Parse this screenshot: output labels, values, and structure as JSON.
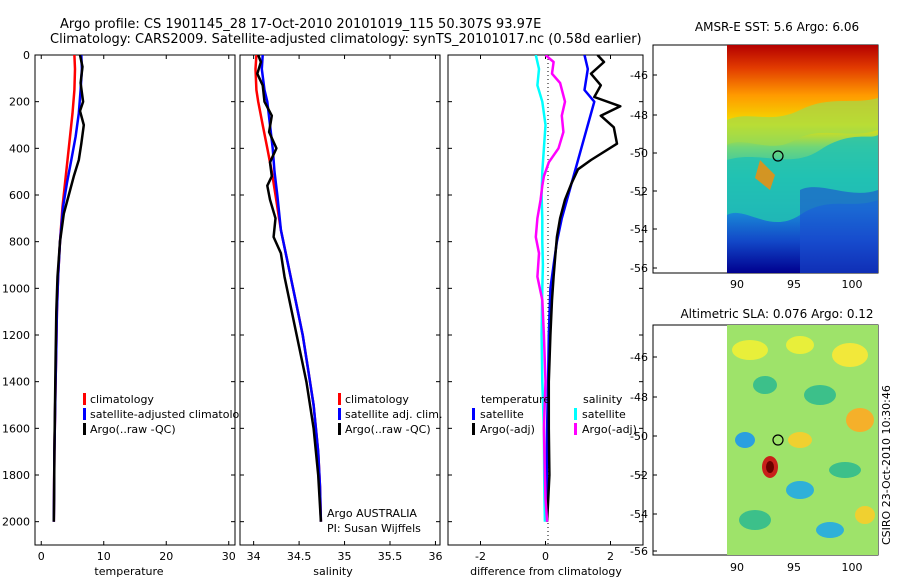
{
  "figure": {
    "title_line1": "Argo profile: CS 1901145_28 17-Oct-2010 20101019_115 50.307S 93.97E",
    "title_line2": "Climatology: CARS2009. Satellite-adjusted climatology: synTS_20101017.nc (0.58d earlier)",
    "side_stamp": "CSIRO 23-Oct-2010 10:30:46"
  },
  "chart_data": [
    {
      "id": "temperature",
      "type": "line",
      "xlabel": "temperature",
      "xlim": [
        -1,
        31
      ],
      "xticks": [
        0,
        10,
        20,
        30
      ],
      "ylim": [
        0,
        2100
      ],
      "yticks": [
        0,
        200,
        400,
        600,
        800,
        1000,
        1200,
        1400,
        1600,
        1800,
        2000
      ],
      "y_reversed": true,
      "legend": [
        "climatology",
        "satellite-adjusted climatolo",
        "Argo(..raw -QC)"
      ],
      "series": [
        {
          "name": "climatology",
          "color": "#ff0000",
          "x": [
            5.3,
            5.4,
            5.3,
            5.0,
            4.6,
            4.2,
            3.8,
            3.4,
            3.0,
            2.7,
            2.5,
            2.4,
            2.3,
            2.2,
            2.1,
            2.05,
            2.0
          ],
          "y": [
            0,
            60,
            150,
            250,
            350,
            450,
            550,
            650,
            800,
            950,
            1100,
            1250,
            1400,
            1550,
            1700,
            1850,
            2000
          ]
        },
        {
          "name": "satellite-adjusted climatology",
          "color": "#0000ff",
          "x": [
            6.4,
            6.5,
            6.3,
            6.0,
            5.5,
            4.8,
            4.1,
            3.5,
            3.0,
            2.7,
            2.5,
            2.4,
            2.3,
            2.2,
            2.1,
            2.05,
            2.0
          ],
          "y": [
            0,
            60,
            150,
            250,
            350,
            450,
            550,
            650,
            800,
            950,
            1100,
            1250,
            1400,
            1550,
            1700,
            1850,
            2000
          ]
        },
        {
          "name": "Argo(..raw -QC)",
          "color": "#000000",
          "x": [
            6.2,
            6.6,
            6.3,
            6.7,
            6.2,
            6.8,
            6.4,
            6.0,
            5.2,
            4.4,
            3.6,
            3.0,
            2.6,
            2.4,
            2.3,
            2.2,
            2.1,
            2.05,
            2.0
          ],
          "y": [
            0,
            50,
            120,
            200,
            240,
            300,
            380,
            450,
            520,
            600,
            680,
            800,
            950,
            1100,
            1300,
            1500,
            1700,
            1900,
            2000
          ]
        }
      ]
    },
    {
      "id": "salinity",
      "type": "line",
      "xlabel": "salinity",
      "xlim": [
        33.85,
        36.05
      ],
      "xticks": [
        34,
        34.5,
        35,
        35.5,
        36
      ],
      "ylim": [
        0,
        2100
      ],
      "yticks": [
        0,
        200,
        400,
        600,
        800,
        1000,
        1200,
        1400,
        1600,
        1800,
        2000
      ],
      "y_reversed": true,
      "legend": [
        "climatology",
        "satellite adj. clim.",
        "Argo(..raw -QC)"
      ],
      "annotations": [
        "Argo AUSTRALIA",
        "PI: Susan Wijffels"
      ],
      "series": [
        {
          "name": "climatology",
          "color": "#ff0000",
          "x": [
            34.03,
            34.02,
            34.03,
            34.05,
            34.1,
            34.15,
            34.2,
            34.24,
            34.3,
            34.38,
            34.46,
            34.54,
            34.6,
            34.66,
            34.71,
            34.73,
            34.74
          ],
          "y": [
            0,
            60,
            150,
            200,
            300,
            400,
            500,
            600,
            750,
            900,
            1050,
            1200,
            1350,
            1500,
            1700,
            1850,
            2000
          ]
        },
        {
          "name": "satellite adj. clim.",
          "color": "#0000ff",
          "x": [
            34.1,
            34.09,
            34.12,
            34.15,
            34.18,
            34.21,
            34.23,
            34.26,
            34.3,
            34.38,
            34.46,
            34.54,
            34.6,
            34.66,
            34.71,
            34.73,
            34.74
          ],
          "y": [
            0,
            60,
            150,
            200,
            300,
            400,
            500,
            600,
            750,
            900,
            1050,
            1200,
            1350,
            1500,
            1700,
            1850,
            2000
          ]
        },
        {
          "name": "Argo(..raw -QC)",
          "color": "#000000",
          "x": [
            34.05,
            34.08,
            34.04,
            34.1,
            34.12,
            34.2,
            34.17,
            34.25,
            34.18,
            34.2,
            34.15,
            34.18,
            34.24,
            34.22,
            34.3,
            34.34,
            34.42,
            34.5,
            34.58,
            34.66,
            34.71,
            34.74
          ],
          "y": [
            0,
            30,
            80,
            130,
            200,
            260,
            330,
            400,
            460,
            520,
            560,
            620,
            700,
            780,
            850,
            950,
            1100,
            1250,
            1400,
            1600,
            1800,
            2000
          ]
        }
      ]
    },
    {
      "id": "difference",
      "type": "line",
      "xlabel": "difference from climatology",
      "xlim": [
        -3,
        3
      ],
      "xticks": [
        -2,
        0,
        2
      ],
      "ylim": [
        0,
        2100
      ],
      "yticks": [
        0,
        200,
        400,
        600,
        800,
        1000,
        1200,
        1400,
        1600,
        1800,
        2000
      ],
      "y_reversed": true,
      "legend": [
        "temperature",
        "satellite",
        "Argo(-adj)",
        "salinity",
        "satellite",
        "Argo(-adj)"
      ],
      "series": [
        {
          "name": "temperature satellite",
          "color": "#0000ff",
          "x": [
            1.2,
            1.3,
            1.2,
            1.5,
            1.3,
            1.1,
            0.9,
            0.7,
            0.5,
            0.35,
            0.25,
            0.15,
            0.1,
            0.08,
            0.05,
            0.04,
            0.04,
            0.03
          ],
          "y": [
            0,
            60,
            150,
            200,
            300,
            400,
            500,
            600,
            700,
            800,
            900,
            1000,
            1200,
            1400,
            1600,
            1800,
            1900,
            2000
          ]
        },
        {
          "name": "temperature Argo(-adj)",
          "color": "#000000",
          "x": [
            1.6,
            1.8,
            1.4,
            1.7,
            1.5,
            2.3,
            1.7,
            2.1,
            2.2,
            1.4,
            1.0,
            0.8,
            0.6,
            0.45,
            0.35,
            0.3,
            0.25,
            0.2,
            0.15,
            0.1,
            0.1,
            0.12,
            0.05
          ],
          "y": [
            0,
            30,
            80,
            130,
            180,
            220,
            260,
            310,
            380,
            450,
            490,
            550,
            620,
            700,
            780,
            860,
            950,
            1050,
            1200,
            1400,
            1600,
            1800,
            2000
          ]
        },
        {
          "name": "salinity satellite",
          "color": "#00ffff",
          "x": [
            -0.3,
            -0.2,
            -0.25,
            -0.1,
            0.0,
            -0.05,
            -0.1,
            -0.12,
            -0.1,
            -0.1,
            -0.08,
            -0.1,
            -0.12,
            -0.1,
            -0.05,
            -0.04,
            -0.03,
            -0.02
          ],
          "y": [
            0,
            60,
            130,
            200,
            300,
            400,
            500,
            600,
            700,
            800,
            900,
            1000,
            1200,
            1400,
            1600,
            1800,
            1900,
            2000
          ]
        },
        {
          "name": "salinity Argo(-adj)",
          "color": "#ff00ff",
          "x": [
            0.0,
            0.25,
            0.2,
            0.45,
            0.6,
            0.5,
            0.55,
            0.4,
            0.1,
            -0.05,
            -0.1,
            -0.15,
            -0.25,
            -0.3,
            -0.2,
            -0.25,
            -0.1,
            -0.05,
            0.0,
            -0.05,
            -0.02,
            0.0,
            0.05
          ],
          "y": [
            0,
            30,
            80,
            120,
            200,
            260,
            330,
            400,
            460,
            520,
            560,
            620,
            700,
            780,
            850,
            950,
            1050,
            1200,
            1400,
            1600,
            1800,
            1900,
            2000
          ]
        }
      ]
    }
  ],
  "maps": {
    "sst": {
      "title": "AMSR-E SST: 5.6 Argo: 6.06",
      "yticks": [
        "-46",
        "-48",
        "-50",
        "-52",
        "-54",
        "-56"
      ],
      "xticks": [
        "90",
        "95",
        "100"
      ]
    },
    "sla": {
      "title": "Altimetric SLA: 0.076 Argo: 0.12",
      "yticks": [
        "-46",
        "-48",
        "-50",
        "-52",
        "-54",
        "-56"
      ],
      "xticks": [
        "90",
        "95",
        "100"
      ]
    }
  },
  "colors": {
    "climatology": "#ff0000",
    "satellite": "#0000ff",
    "argo": "#000000",
    "salinity_satellite": "#00ffff",
    "salinity_argo": "#ff00ff",
    "map_land": "#ffffff"
  }
}
